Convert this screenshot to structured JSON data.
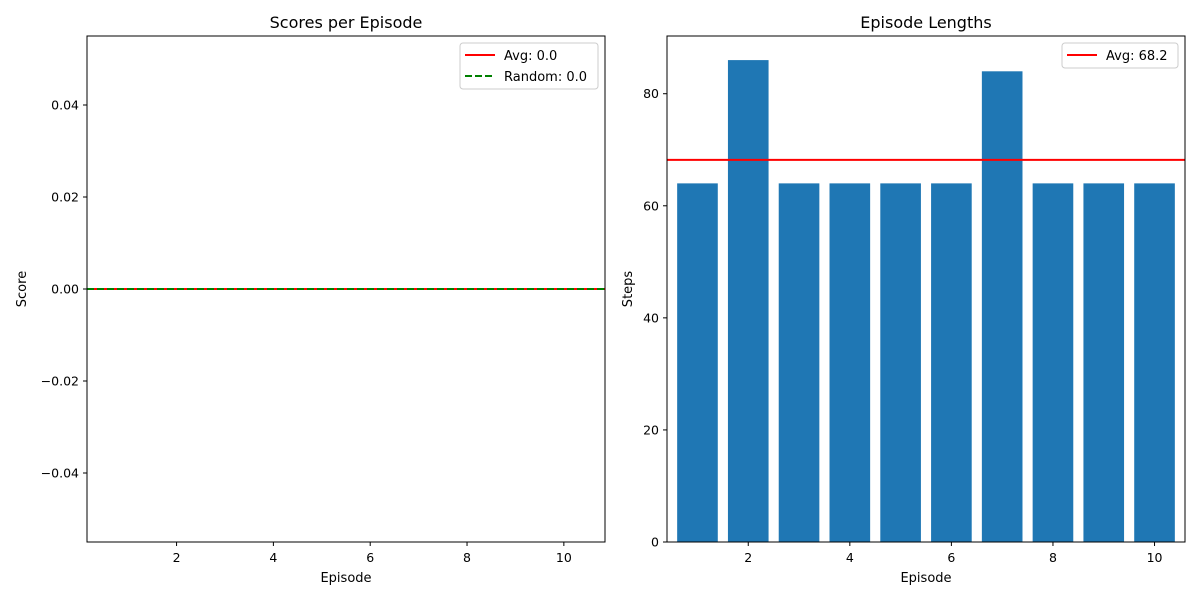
{
  "chart_data": [
    {
      "type": "line",
      "title": "Scores per Episode",
      "xlabel": "Episode",
      "ylabel": "Score",
      "xlim": [
        0.15,
        10.85
      ],
      "ylim": [
        -0.055,
        0.055
      ],
      "xticks": [
        2,
        4,
        6,
        8,
        10
      ],
      "xtick_labels": [
        "2",
        "4",
        "6",
        "8",
        "10"
      ],
      "yticks": [
        -0.04,
        -0.02,
        0.0,
        0.02,
        0.04
      ],
      "ytick_labels": [
        "−0.04",
        "−0.02",
        "0.00",
        "0.02",
        "0.04"
      ],
      "x": [
        1,
        2,
        3,
        4,
        5,
        6,
        7,
        8,
        9,
        10
      ],
      "values": [
        0,
        0,
        0,
        0,
        0,
        0,
        0,
        0,
        0,
        0
      ],
      "hlines": [
        {
          "label": "Avg: 0.0",
          "y": 0.0,
          "color": "#ff0000",
          "style": "solid"
        },
        {
          "label": "Random: 0.0",
          "y": 0.0,
          "color": "#008000",
          "style": "dashed"
        }
      ],
      "legend": "top-right",
      "grid": false
    },
    {
      "type": "bar",
      "title": "Episode Lengths",
      "xlabel": "Episode",
      "ylabel": "Steps",
      "xlim": [
        0.4,
        10.6
      ],
      "ylim": [
        0,
        90.3
      ],
      "xticks": [
        2,
        4,
        6,
        8,
        10
      ],
      "xtick_labels": [
        "2",
        "4",
        "6",
        "8",
        "10"
      ],
      "yticks": [
        0,
        20,
        40,
        60,
        80
      ],
      "ytick_labels": [
        "0",
        "20",
        "40",
        "60",
        "80"
      ],
      "categories": [
        1,
        2,
        3,
        4,
        5,
        6,
        7,
        8,
        9,
        10
      ],
      "values": [
        64,
        86,
        64,
        64,
        64,
        64,
        84,
        64,
        64,
        64
      ],
      "bar_color": "#1f77b4",
      "hlines": [
        {
          "label": "Avg: 68.2",
          "y": 68.2,
          "color": "#ff0000",
          "style": "solid"
        }
      ],
      "legend": "top-right",
      "grid": false
    }
  ]
}
